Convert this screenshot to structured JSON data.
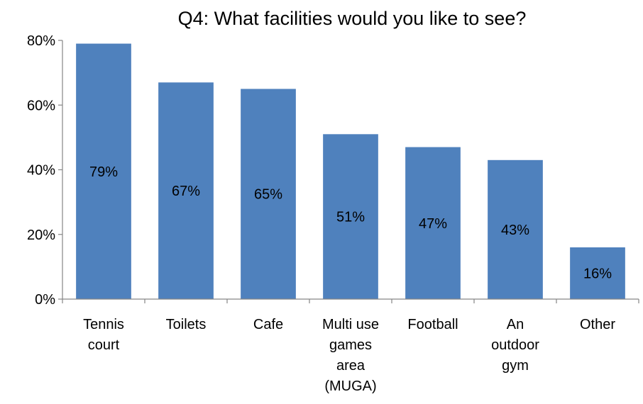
{
  "chart_data": {
    "type": "bar",
    "title": "Q4: What facilities would you like to see?",
    "xlabel": "",
    "ylabel": "",
    "categories": [
      [
        "Tennis",
        "court"
      ],
      [
        "Toilets"
      ],
      [
        "Cafe"
      ],
      [
        "Multi use",
        "games",
        "area",
        "(MUGA)"
      ],
      [
        "Football"
      ],
      [
        "An",
        "outdoor",
        "gym"
      ],
      [
        "Other"
      ]
    ],
    "values": [
      79,
      67,
      65,
      51,
      47,
      43,
      16
    ],
    "data_labels": [
      "79%",
      "67%",
      "65%",
      "51%",
      "47%",
      "43%",
      "16%"
    ],
    "ylim": [
      0,
      80
    ],
    "yticks": [
      0,
      20,
      40,
      60,
      80
    ],
    "ytick_labels": [
      "0%",
      "20%",
      "40%",
      "60%",
      "80%"
    ],
    "grid": false,
    "legend": "none",
    "bar_color": "#4f81bd"
  }
}
